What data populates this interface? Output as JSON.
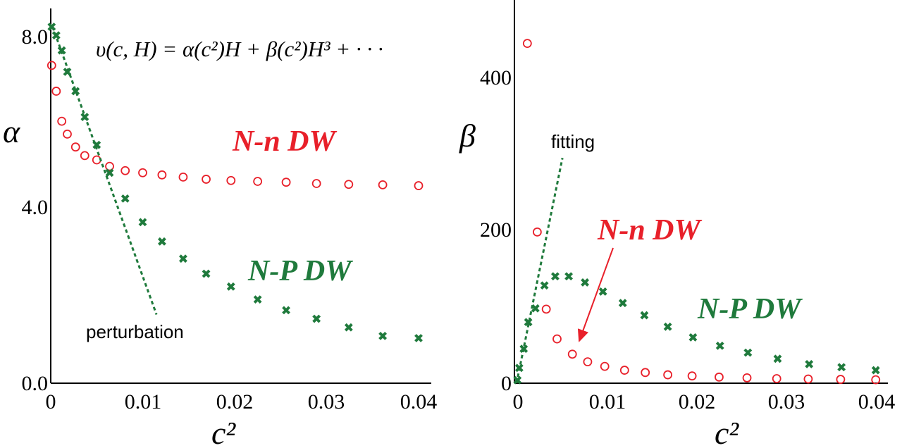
{
  "colors": {
    "red": "#e8202a",
    "green": "#1f7a3c",
    "axis": "#000000"
  },
  "chart_data": [
    {
      "type": "scatter",
      "ylabel": "α",
      "xlabel": "c²",
      "xlim": [
        0,
        0.04
      ],
      "ylim": [
        0,
        8.3
      ],
      "xticks": [
        "0",
        "0.01",
        "0.02",
        "0.03",
        "0.04"
      ],
      "yticks": [
        "0.0",
        "4.0",
        "8.0"
      ],
      "formula": "υ(c, H) = α(c²)H + β(c²)H³ + · · ·",
      "series": [
        {
          "name": "N-n DW",
          "color": "#e8202a",
          "marker": "circle",
          "x": [
            0.0001,
            0.0006,
            0.0012,
            0.0018,
            0.0027,
            0.0037,
            0.005,
            0.0064,
            0.0081,
            0.01,
            0.0121,
            0.0144,
            0.0169,
            0.0196,
            0.0225,
            0.0256,
            0.0289,
            0.0324,
            0.0361,
            0.04
          ],
          "y": [
            7.4,
            6.8,
            6.1,
            5.8,
            5.5,
            5.3,
            5.2,
            5.05,
            4.95,
            4.9,
            4.85,
            4.8,
            4.75,
            4.72,
            4.7,
            4.68,
            4.65,
            4.63,
            4.62,
            4.6
          ]
        },
        {
          "name": "N-P DW",
          "color": "#1f7a3c",
          "marker": "x",
          "x": [
            0.0001,
            0.0006,
            0.0012,
            0.0018,
            0.0027,
            0.0037,
            0.005,
            0.0064,
            0.0081,
            0.01,
            0.0121,
            0.0144,
            0.0169,
            0.0196,
            0.0225,
            0.0256,
            0.0289,
            0.0324,
            0.0361,
            0.04
          ],
          "y": [
            8.3,
            8.1,
            7.75,
            7.25,
            6.8,
            6.2,
            5.55,
            4.9,
            4.3,
            3.75,
            3.3,
            2.9,
            2.55,
            2.25,
            1.95,
            1.7,
            1.5,
            1.3,
            1.1,
            1.05
          ]
        },
        {
          "name": "perturbation",
          "color": "#1f7a3c",
          "style": "dashed-line",
          "x": [
            0.0002,
            0.0115
          ],
          "y": [
            8.3,
            1.6
          ]
        }
      ],
      "annotations": [
        {
          "text": "N-n DW",
          "color": "#e8202a"
        },
        {
          "text": "N-P DW",
          "color": "#1f7a3c"
        },
        {
          "text": "perturbation",
          "color": "#000000"
        }
      ]
    },
    {
      "type": "scatter",
      "ylabel": "β",
      "xlabel": "c²",
      "xlim": [
        0,
        0.04
      ],
      "ylim": [
        0,
        500
      ],
      "xticks": [
        "0",
        "0.01",
        "0.02",
        "0.03",
        "0.04"
      ],
      "yticks": [
        "0",
        "200",
        "400"
      ],
      "series": [
        {
          "name": "N-n DW",
          "color": "#e8202a",
          "marker": "circle",
          "x": [
            0.0012,
            0.0023,
            0.0033,
            0.0045,
            0.0062,
            0.0079,
            0.0098,
            0.012,
            0.0143,
            0.0168,
            0.0195,
            0.0225,
            0.0256,
            0.0289,
            0.0324,
            0.036,
            0.0399
          ],
          "y": [
            445,
            198,
            97,
            58,
            38,
            28,
            22,
            17,
            14,
            11,
            9.5,
            8,
            7,
            6,
            5.5,
            5,
            4.5
          ]
        },
        {
          "name": "N-P DW",
          "color": "#1f7a3c",
          "marker": "x",
          "x": [
            0.0001,
            0.0003,
            0.0008,
            0.0013,
            0.0021,
            0.0031,
            0.0043,
            0.0058,
            0.0076,
            0.0096,
            0.0118,
            0.0142,
            0.0168,
            0.0196,
            0.0226,
            0.0257,
            0.029,
            0.0325,
            0.0361,
            0.0399
          ],
          "y": [
            4,
            20,
            45,
            80,
            98,
            128,
            140,
            140,
            132,
            120,
            105,
            89,
            74,
            60,
            49,
            40,
            32,
            25,
            21,
            17
          ]
        },
        {
          "name": "fitting",
          "color": "#1f7a3c",
          "style": "dashed-line",
          "x": [
            0.0,
            0.0051
          ],
          "y": [
            0,
            295
          ]
        }
      ],
      "annotations": [
        {
          "text": "N-n DW",
          "color": "#e8202a"
        },
        {
          "text": "N-P DW",
          "color": "#1f7a3c"
        },
        {
          "text": "fitting",
          "color": "#000000"
        }
      ]
    }
  ]
}
